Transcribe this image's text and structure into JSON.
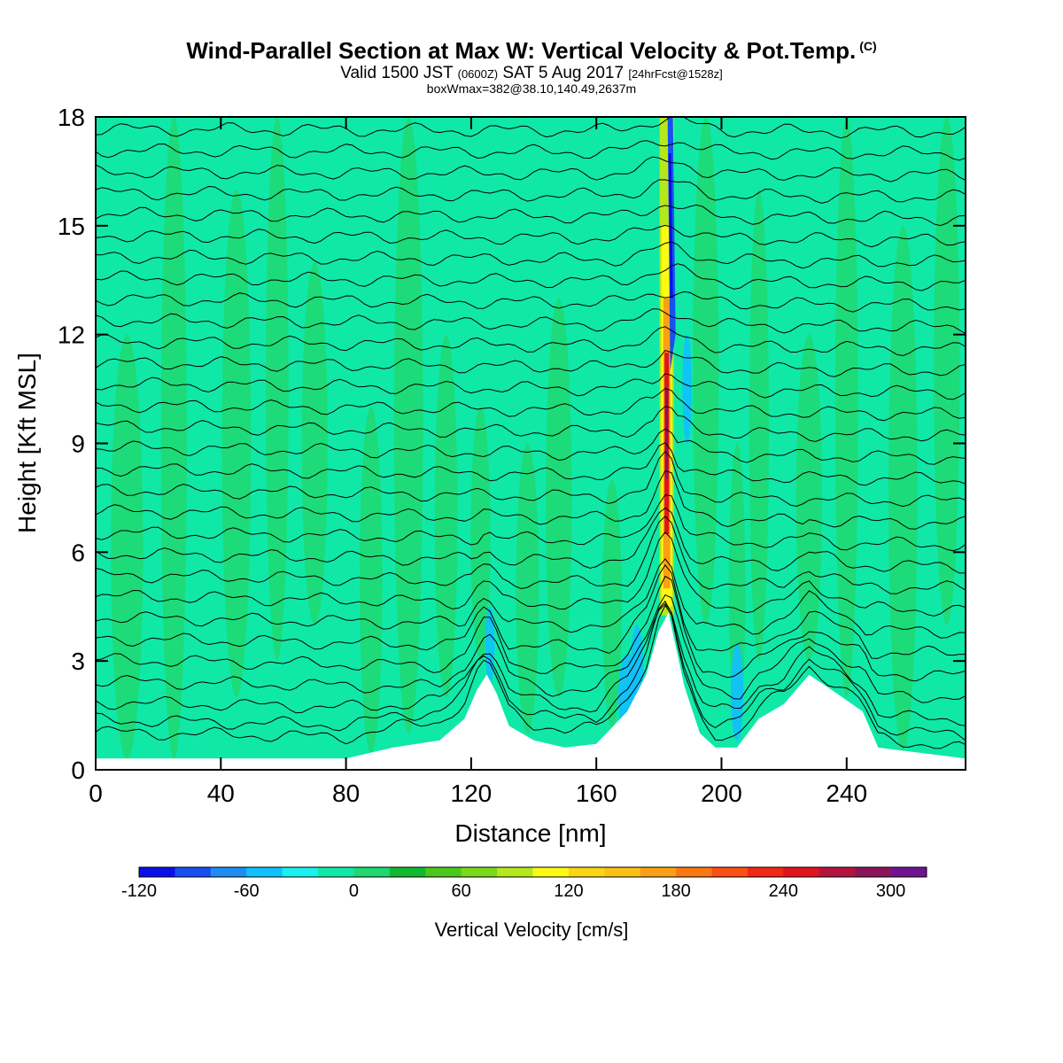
{
  "chart_data": {
    "type": "heatmap",
    "title": "Wind-Parallel Section at Max W: Vertical Velocity & Pot.Temp.",
    "title_mark": "(C)",
    "subtitle": {
      "prefix": "Valid 1500 JST",
      "zulu": "(0600Z)",
      "date": "SAT 5 Aug 2017",
      "forecast": "[24hrFcst@1528z]"
    },
    "annotation": "boxWmax=382@38.10,140.49,2637m",
    "xlabel": "Distance [nm]",
    "ylabel": "Height [Kft MSL]",
    "xlim": [
      0,
      278
    ],
    "ylim": [
      0,
      18
    ],
    "xticks": [
      "0",
      "40",
      "80",
      "120",
      "160",
      "200",
      "240"
    ],
    "yticks": [
      "0",
      "3",
      "6",
      "9",
      "12",
      "15",
      "18"
    ],
    "terrain": [
      [
        0,
        0.3
      ],
      [
        40,
        0.3
      ],
      [
        80,
        0.3
      ],
      [
        90,
        0.5
      ],
      [
        95,
        0.6
      ],
      [
        110,
        0.8
      ],
      [
        118,
        1.4
      ],
      [
        122,
        2.2
      ],
      [
        125,
        2.6
      ],
      [
        128,
        2.1
      ],
      [
        132,
        1.2
      ],
      [
        140,
        0.8
      ],
      [
        150,
        0.6
      ],
      [
        160,
        0.7
      ],
      [
        170,
        1.6
      ],
      [
        176,
        2.6
      ],
      [
        180,
        3.8
      ],
      [
        183,
        4.3
      ],
      [
        185,
        3.5
      ],
      [
        188,
        2.3
      ],
      [
        193,
        1.0
      ],
      [
        198,
        0.6
      ],
      [
        205,
        0.6
      ],
      [
        212,
        1.4
      ],
      [
        220,
        1.8
      ],
      [
        228,
        2.6
      ],
      [
        235,
        2.2
      ],
      [
        245,
        1.6
      ],
      [
        250,
        0.6
      ],
      [
        278,
        0.3
      ]
    ],
    "updraft_core": {
      "x": 182.5,
      "top": 18,
      "base": 4.5,
      "max_velocity": 382
    },
    "theta_contour_heights": [
      0.4,
      0.9,
      1.4,
      2.0,
      2.6,
      3.2,
      3.8,
      4.4,
      5.0,
      5.6,
      6.2,
      6.8,
      7.4,
      8.0,
      8.6,
      9.2,
      9.8,
      10.4,
      11.0,
      11.6,
      12.2,
      12.8,
      13.4,
      14.0,
      14.6,
      15.2,
      15.8,
      16.4,
      17.0,
      17.6
    ],
    "colorbar": {
      "title": "Vertical Velocity [cm/s]",
      "tick_labels": [
        "-120",
        "-60",
        "0",
        "60",
        "120",
        "180",
        "240",
        "300"
      ],
      "colors": [
        "#0a10e8",
        "#1650f0",
        "#1f8cf5",
        "#10c0ff",
        "#19f0f0",
        "#10e8a8",
        "#20d870",
        "#10b830",
        "#4cc81c",
        "#7cd81c",
        "#b4e81c",
        "#fafa14",
        "#fad614",
        "#fac014",
        "#faa014",
        "#fa7814",
        "#fa5014",
        "#f02814",
        "#e0141e",
        "#b4143c",
        "#8c145a",
        "#6e1490"
      ],
      "background_color": "#10e8a8",
      "ridge_color": "#20d870"
    }
  }
}
